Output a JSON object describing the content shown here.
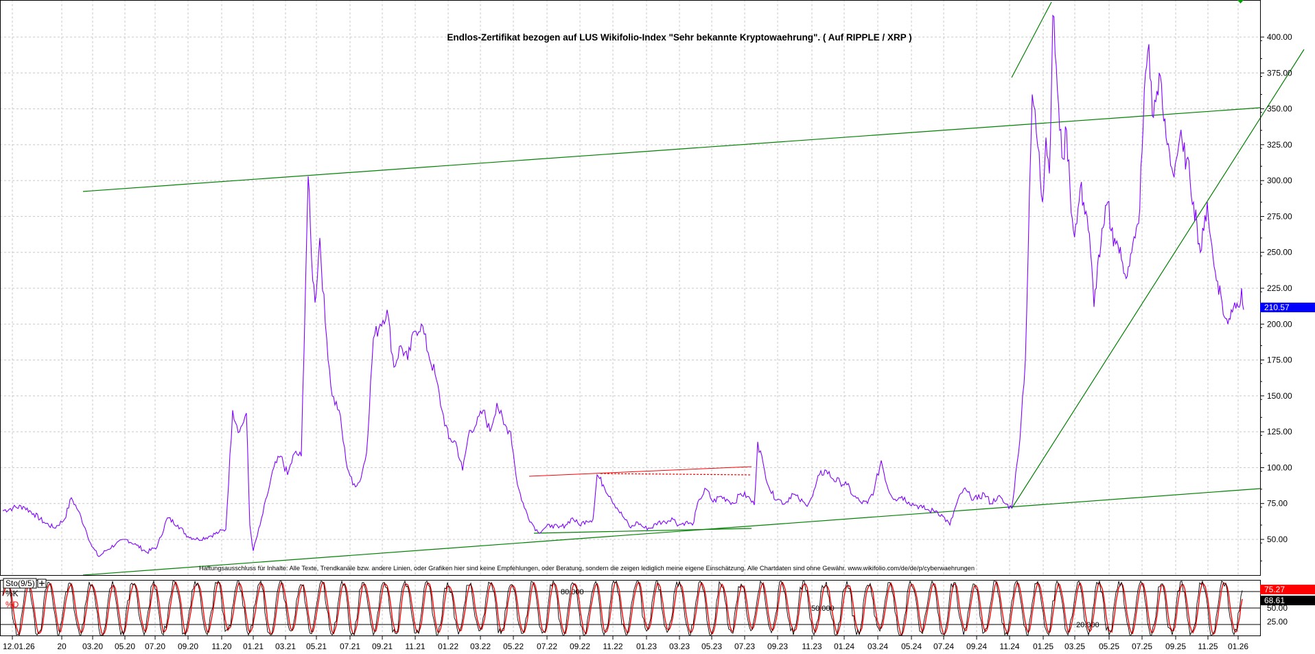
{
  "chart_data": [
    {
      "type": "line",
      "title": "Endlos-Zertifikat bezogen auf LUS Wikifolio-Index \"Sehr bekannte Kryptowaehrung\". ( Auf RIPPLE / XRP )",
      "disclaimer": "Haftungsausschluss für Inhalte: Alle Texte, Trendkanäle bzw. andere Linien, oder Grafiken hier sind keine Empfehlungen, oder Beratung, sondern die zeigen lediglich meine eigene Einschätzung. Alle Chartdaten sind ohne Gewähr. www.wikifolio.com/de/de/p/cyberwaehrungen",
      "y_ticks": [
        "400.00",
        "375.00",
        "350.00",
        "325.00",
        "300.00",
        "275.00",
        "250.00",
        "225.00",
        "200.00",
        "175.00",
        "150.00",
        "125.00",
        "100.00",
        "75.00",
        "50.00"
      ],
      "ylim": [
        30,
        410
      ],
      "last_value_label": "210.57",
      "last_value": 210.57,
      "grid": true,
      "colors": {
        "price": "#7f00ff",
        "trend": "#008000",
        "resistance": "#ff0000",
        "last_value_bg": "#0000ff"
      },
      "series": [
        {
          "values": [
            [
              0,
              70
            ],
            [
              15,
              72
            ],
            [
              30,
              73
            ],
            [
              45,
              68
            ],
            [
              60,
              62
            ],
            [
              75,
              58
            ],
            [
              90,
              64
            ],
            [
              100,
              79
            ],
            [
              110,
              70
            ],
            [
              120,
              58
            ],
            [
              130,
              45
            ],
            [
              140,
              38
            ],
            [
              150,
              42
            ],
            [
              165,
              47
            ],
            [
              180,
              50
            ],
            [
              195,
              46
            ],
            [
              210,
              41
            ],
            [
              225,
              45
            ],
            [
              240,
              65
            ],
            [
              255,
              60
            ],
            [
              270,
              52
            ],
            [
              285,
              50
            ],
            [
              300,
              52
            ],
            [
              315,
              55
            ],
            [
              325,
              57
            ],
            [
              335,
              140
            ],
            [
              345,
              125
            ],
            [
              355,
              138
            ],
            [
              360,
              60
            ],
            [
              365,
              42
            ],
            [
              375,
              60
            ],
            [
              385,
              80
            ],
            [
              395,
              100
            ],
            [
              405,
              108
            ],
            [
              415,
              95
            ],
            [
              425,
              110
            ],
            [
              435,
              108
            ],
            [
              445,
              303
            ],
            [
              450,
              245
            ],
            [
              455,
              215
            ],
            [
              462,
              260
            ],
            [
              470,
              200
            ],
            [
              480,
              150
            ],
            [
              490,
              140
            ],
            [
              500,
              105
            ],
            [
              510,
              88
            ],
            [
              520,
              90
            ],
            [
              530,
              110
            ],
            [
              540,
              190
            ],
            [
              550,
              200
            ],
            [
              560,
              210
            ],
            [
              570,
              170
            ],
            [
              580,
              185
            ],
            [
              590,
              175
            ],
            [
              600,
              195
            ],
            [
              610,
              200
            ],
            [
              620,
              180
            ],
            [
              630,
              165
            ],
            [
              640,
              140
            ],
            [
              650,
              120
            ],
            [
              660,
              118
            ],
            [
              670,
              98
            ],
            [
              680,
              126
            ],
            [
              690,
              130
            ],
            [
              700,
              140
            ],
            [
              710,
              125
            ],
            [
              720,
              145
            ],
            [
              730,
              130
            ],
            [
              740,
              125
            ],
            [
              750,
              88
            ],
            [
              760,
              72
            ],
            [
              770,
              62
            ],
            [
              780,
              55
            ],
            [
              790,
              58
            ],
            [
              800,
              60
            ],
            [
              810,
              58
            ],
            [
              820,
              60
            ],
            [
              830,
              65
            ],
            [
              840,
              60
            ],
            [
              850,
              63
            ],
            [
              860,
              64
            ],
            [
              866,
              95
            ],
            [
              875,
              88
            ],
            [
              885,
              80
            ],
            [
              895,
              72
            ],
            [
              905,
              65
            ],
            [
              915,
              58
            ],
            [
              925,
              62
            ],
            [
              935,
              58
            ],
            [
              945,
              58
            ],
            [
              955,
              62
            ],
            [
              965,
              62
            ],
            [
              975,
              65
            ],
            [
              985,
              60
            ],
            [
              995,
              62
            ],
            [
              1005,
              60
            ],
            [
              1015,
              78
            ],
            [
              1025,
              85
            ],
            [
              1035,
              76
            ],
            [
              1045,
              80
            ],
            [
              1055,
              78
            ],
            [
              1065,
              75
            ],
            [
              1075,
              82
            ],
            [
              1085,
              80
            ],
            [
              1095,
              74
            ],
            [
              1100,
              118
            ],
            [
              1110,
              98
            ],
            [
              1120,
              82
            ],
            [
              1130,
              78
            ],
            [
              1140,
              75
            ],
            [
              1150,
              82
            ],
            [
              1160,
              78
            ],
            [
              1170,
              74
            ],
            [
              1180,
              80
            ],
            [
              1190,
              95
            ],
            [
              1200,
              98
            ],
            [
              1210,
              92
            ],
            [
              1220,
              90
            ],
            [
              1230,
              88
            ],
            [
              1240,
              80
            ],
            [
              1250,
              76
            ],
            [
              1260,
              75
            ],
            [
              1270,
              85
            ],
            [
              1280,
              105
            ],
            [
              1290,
              85
            ],
            [
              1300,
              78
            ],
            [
              1310,
              80
            ],
            [
              1320,
              76
            ],
            [
              1330,
              74
            ],
            [
              1340,
              72
            ],
            [
              1350,
              70
            ],
            [
              1360,
              70
            ],
            [
              1370,
              66
            ],
            [
              1380,
              60
            ],
            [
              1390,
              75
            ],
            [
              1400,
              85
            ],
            [
              1410,
              80
            ],
            [
              1420,
              78
            ],
            [
              1430,
              82
            ],
            [
              1440,
              75
            ],
            [
              1450,
              80
            ],
            [
              1460,
              75
            ],
            [
              1470,
              72
            ],
            [
              1480,
              110
            ],
            [
              1490,
              175
            ],
            [
              1500,
              360
            ],
            [
              1510,
              320
            ],
            [
              1515,
              285
            ],
            [
              1520,
              330
            ],
            [
              1525,
              305
            ],
            [
              1530,
              415
            ],
            [
              1535,
              380
            ],
            [
              1540,
              335
            ],
            [
              1545,
              315
            ],
            [
              1550,
              335
            ],
            [
              1555,
              295
            ],
            [
              1560,
              265
            ],
            [
              1565,
              270
            ],
            [
              1570,
              295
            ],
            [
              1575,
              285
            ],
            [
              1580,
              275
            ],
            [
              1585,
              250
            ],
            [
              1590,
              212
            ],
            [
              1595,
              240
            ],
            [
              1600,
              255
            ],
            [
              1605,
              270
            ],
            [
              1610,
              285
            ],
            [
              1615,
              265
            ],
            [
              1620,
              260
            ],
            [
              1625,
              255
            ],
            [
              1630,
              245
            ],
            [
              1635,
              235
            ],
            [
              1640,
              240
            ],
            [
              1645,
              250
            ],
            [
              1650,
              260
            ],
            [
              1655,
              270
            ],
            [
              1660,
              320
            ],
            [
              1665,
              375
            ],
            [
              1670,
              395
            ],
            [
              1675,
              345
            ],
            [
              1680,
              355
            ],
            [
              1685,
              375
            ],
            [
              1690,
              350
            ],
            [
              1695,
              330
            ],
            [
              1700,
              320
            ],
            [
              1705,
              305
            ],
            [
              1710,
              315
            ],
            [
              1715,
              330
            ],
            [
              1720,
              320
            ],
            [
              1725,
              315
            ],
            [
              1730,
              300
            ],
            [
              1735,
              285
            ],
            [
              1740,
              270
            ],
            [
              1745,
              250
            ],
            [
              1750,
              265
            ],
            [
              1755,
              285
            ],
            [
              1760,
              260
            ],
            [
              1765,
              240
            ],
            [
              1770,
              230
            ],
            [
              1775,
              220
            ],
            [
              1780,
              205
            ],
            [
              1785,
              200
            ],
            [
              1790,
              210
            ],
            [
              1795,
              215
            ],
            [
              1800,
              212
            ],
            [
              1805,
              225
            ],
            [
              1808,
              210
            ]
          ]
        }
      ],
      "x_ticks": [
        "12.01.26",
        "20",
        "03.20",
        "05.20",
        "07.20",
        "09.20",
        "11.20",
        "01.21",
        "03.21",
        "05.21",
        "07.21",
        "09.21",
        "11.21",
        "01.22",
        "03.22",
        "05.22",
        "07.22",
        "09.22",
        "11.22",
        "01.23",
        "03.23",
        "05.23",
        "07.23",
        "09.23",
        "11.23",
        "01.24",
        "03.24",
        "05.24",
        "07.24",
        "09.24",
        "11.24",
        "01.25",
        "03.25",
        "05.25",
        "07.25",
        "09.25",
        "11.25",
        "01.26"
      ]
    },
    {
      "type": "line",
      "indicator_label": "Sto(9/5)",
      "series_labels": [
        "%K",
        "%D"
      ],
      "level_labels": [
        "80.000",
        "50.000",
        "20.000"
      ],
      "y_ticks": [
        "50.00",
        "25.00"
      ],
      "ylim": [
        0,
        100
      ],
      "value_labels": {
        "k": "75.27",
        "d": "68.61"
      },
      "colors": {
        "k": "#000000",
        "d": "#ff0000",
        "k_label_bg": "#ff0000",
        "d_label_bg": "#000000"
      }
    }
  ]
}
